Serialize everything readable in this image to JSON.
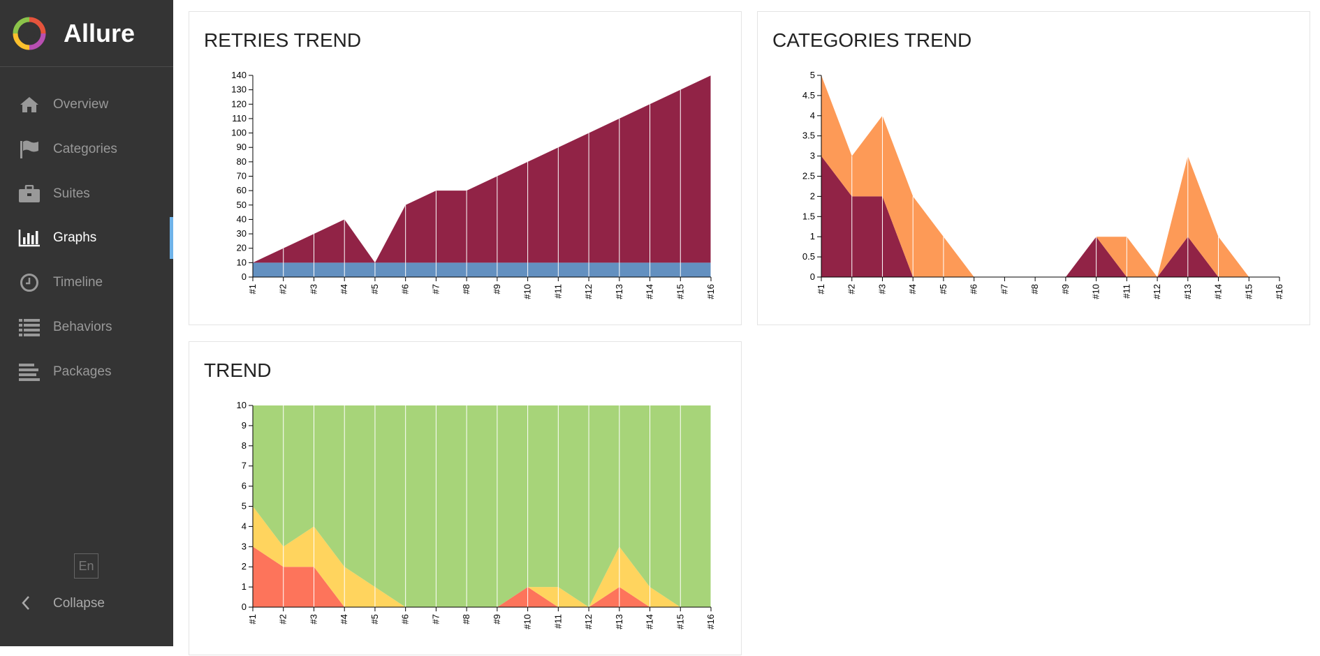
{
  "app": {
    "name": "Allure"
  },
  "sidebar": {
    "items": [
      {
        "label": "Overview",
        "icon": "home-icon"
      },
      {
        "label": "Categories",
        "icon": "flag-icon"
      },
      {
        "label": "Suites",
        "icon": "briefcase-icon"
      },
      {
        "label": "Graphs",
        "icon": "bar-chart-icon",
        "active": true
      },
      {
        "label": "Timeline",
        "icon": "clock-icon"
      },
      {
        "label": "Behaviors",
        "icon": "list-icon"
      },
      {
        "label": "Packages",
        "icon": "align-left-icon"
      }
    ],
    "language": "En",
    "collapse_label": "Collapse"
  },
  "colors": {
    "sidebar_bg": "#343434",
    "active_indicator": "#6fb3e9",
    "retries": "#912346",
    "run": "#6390c0",
    "product_defects": "#912346",
    "test_defects": "#fd9a57",
    "failed": "#fd745b",
    "broken": "#ffd45e",
    "passed": "#a7d479"
  },
  "panels": {
    "retries": {
      "title": "RETRIES TREND"
    },
    "categories": {
      "title": "CATEGORIES TREND"
    },
    "trend": {
      "title": "TREND"
    }
  },
  "chart_data": [
    {
      "type": "area",
      "title": "RETRIES TREND",
      "stacked": true,
      "categories": [
        "#1",
        "#2",
        "#3",
        "#4",
        "#5",
        "#6",
        "#7",
        "#8",
        "#9",
        "#10",
        "#11",
        "#12",
        "#13",
        "#14",
        "#15",
        "#16"
      ],
      "series": [
        {
          "values": [
            10,
            10,
            10,
            10,
            10,
            10,
            10,
            10,
            10,
            10,
            10,
            10,
            10,
            10,
            10,
            10
          ],
          "color": "#6390c0"
        },
        {
          "values": [
            0,
            10,
            20,
            30,
            0,
            40,
            50,
            50,
            60,
            70,
            80,
            90,
            100,
            110,
            120,
            130
          ],
          "color": "#912346"
        }
      ],
      "ylim": [
        0,
        140
      ],
      "yticks": [
        0,
        10,
        20,
        30,
        40,
        50,
        60,
        70,
        80,
        90,
        100,
        110,
        120,
        130,
        140
      ]
    },
    {
      "type": "area",
      "title": "CATEGORIES TREND",
      "stacked": true,
      "categories": [
        "#1",
        "#2",
        "#3",
        "#4",
        "#5",
        "#6",
        "#7",
        "#8",
        "#9",
        "#10",
        "#11",
        "#12",
        "#13",
        "#14",
        "#15",
        "#16"
      ],
      "series": [
        {
          "values": [
            3,
            2,
            2,
            0,
            0,
            0,
            0,
            0,
            0,
            1,
            0,
            0,
            1,
            0,
            0,
            0
          ],
          "color": "#912346"
        },
        {
          "values": [
            2,
            1,
            2,
            2,
            1,
            0,
            0,
            0,
            0,
            0,
            1,
            0,
            2,
            1,
            0,
            0
          ],
          "color": "#fd9a57"
        }
      ],
      "ylim": [
        0,
        5
      ],
      "yticks": [
        "0",
        "0.5",
        "1",
        "1.5",
        "2",
        "2.5",
        "3",
        "3.5",
        "4",
        "4.5",
        "5"
      ]
    },
    {
      "type": "area",
      "title": "TREND",
      "stacked": true,
      "categories": [
        "#1",
        "#2",
        "#3",
        "#4",
        "#5",
        "#6",
        "#7",
        "#8",
        "#9",
        "#10",
        "#11",
        "#12",
        "#13",
        "#14",
        "#15",
        "#16"
      ],
      "series": [
        {
          "values": [
            3,
            2,
            2,
            0,
            0,
            0,
            0,
            0,
            0,
            1,
            0,
            0,
            1,
            0,
            0,
            0
          ],
          "color": "#fd745b"
        },
        {
          "values": [
            2,
            1,
            2,
            2,
            1,
            0,
            0,
            0,
            0,
            0,
            1,
            0,
            2,
            1,
            0,
            0
          ],
          "color": "#ffd45e"
        },
        {
          "values": [
            5,
            7,
            6,
            8,
            9,
            10,
            10,
            10,
            10,
            9,
            9,
            10,
            7,
            9,
            10,
            10
          ],
          "color": "#a7d479"
        }
      ],
      "ylim": [
        0,
        10
      ],
      "yticks": [
        0,
        1,
        2,
        3,
        4,
        5,
        6,
        7,
        8,
        9,
        10
      ]
    }
  ]
}
